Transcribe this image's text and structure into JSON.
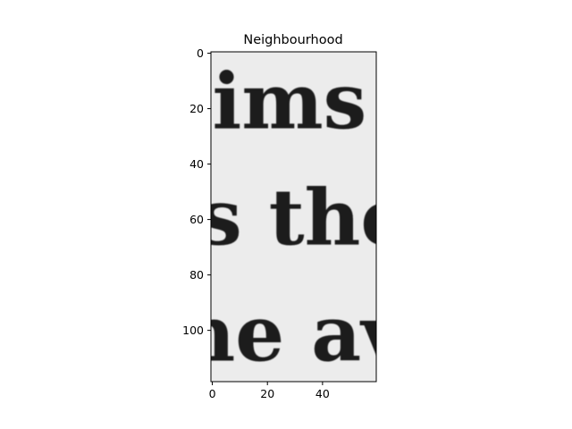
{
  "chart_data": {
    "type": "heatmap",
    "title": "Neighbourhood",
    "xlabel": "",
    "ylabel": "",
    "image_width": 60,
    "image_height": 119,
    "xlim": [
      -0.5,
      59.5
    ],
    "ylim": [
      118.5,
      -0.5
    ],
    "xticks": [
      0,
      20,
      40
    ],
    "yticks": [
      0,
      20,
      40,
      60,
      80,
      100
    ],
    "grid": false,
    "colormap": "gray",
    "content": "grayscale crop of printed text",
    "text_fragments": [
      {
        "text": "ims",
        "x_start": 0,
        "baseline_y": 27
      },
      {
        "text": "s the",
        "x_start": -5,
        "baseline_y": 69
      },
      {
        "text": "ne av",
        "x_start": -12,
        "baseline_y": 111
      }
    ]
  }
}
